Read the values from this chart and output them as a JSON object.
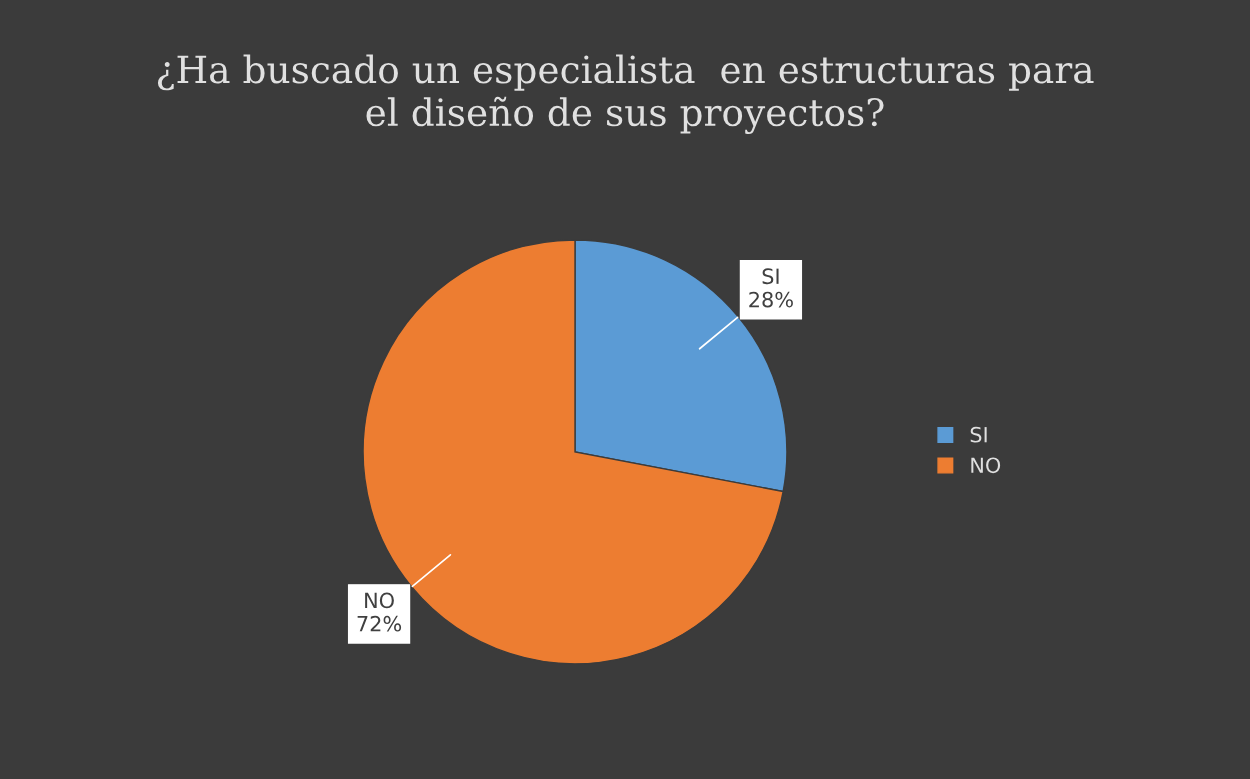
{
  "chart_data": {
    "type": "pie",
    "title": "¿Ha buscado un especialista  en estructuras para\nel diseño de sus proyectos?",
    "categories": [
      "SI",
      "NO"
    ],
    "values": [
      28,
      72
    ],
    "colors": [
      "#5b9bd5",
      "#ed7d31"
    ],
    "value_labels": [
      "28%",
      "72%"
    ],
    "legend": "right"
  }
}
